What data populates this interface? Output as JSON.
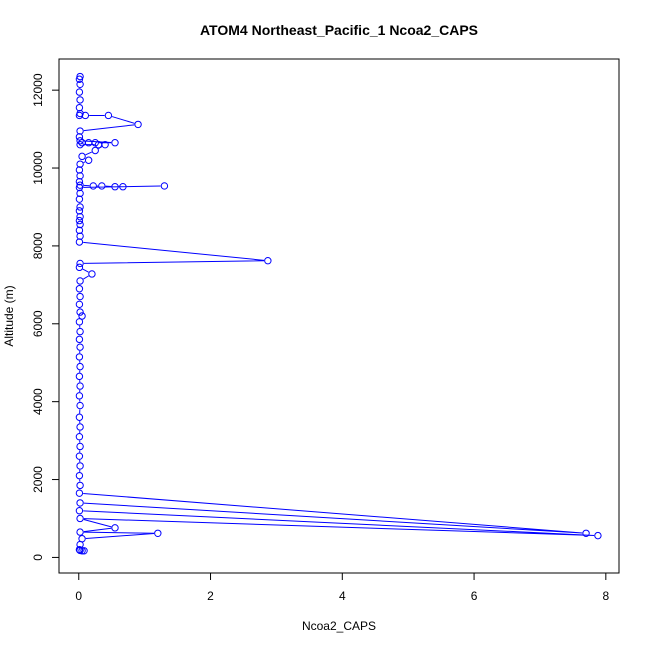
{
  "chart_data": {
    "type": "line",
    "title": "ATOM4 Northeast_Pacific_1 Ncoa2_CAPS",
    "xlabel": "Ncoa2_CAPS",
    "ylabel": "Altitude (m)",
    "xlim": [
      -0.3,
      8.2
    ],
    "ylim": [
      -400,
      12800
    ],
    "x_ticks": [
      0,
      2,
      4,
      6,
      8
    ],
    "y_ticks": [
      0,
      2000,
      4000,
      6000,
      8000,
      10000,
      12000
    ],
    "grid": false,
    "legend": "none",
    "series": [
      {
        "color": "#0000ff",
        "markers": "open-circle",
        "points": [
          {
            "x": 0.02,
            "y": 12350
          },
          {
            "x": 0.01,
            "y": 12280
          },
          {
            "x": 0.02,
            "y": 12150
          },
          {
            "x": 0.01,
            "y": 11950
          },
          {
            "x": 0.02,
            "y": 11750
          },
          {
            "x": 0.01,
            "y": 11550
          },
          {
            "x": 0.02,
            "y": 11400
          },
          {
            "x": 0.01,
            "y": 11350
          },
          {
            "x": 0.1,
            "y": 11350
          },
          {
            "x": 0.45,
            "y": 11350
          },
          {
            "x": 0.9,
            "y": 11120
          },
          {
            "x": 0.02,
            "y": 10950
          },
          {
            "x": 0.01,
            "y": 10800
          },
          {
            "x": 0.02,
            "y": 10700
          },
          {
            "x": 0.55,
            "y": 10650
          },
          {
            "x": 0.25,
            "y": 10650
          },
          {
            "x": 0.15,
            "y": 10650
          },
          {
            "x": 0.05,
            "y": 10650
          },
          {
            "x": 0.02,
            "y": 10600
          },
          {
            "x": 0.3,
            "y": 10600
          },
          {
            "x": 0.4,
            "y": 10600
          },
          {
            "x": 0.25,
            "y": 10450
          },
          {
            "x": 0.05,
            "y": 10300
          },
          {
            "x": 0.15,
            "y": 10200
          },
          {
            "x": 0.02,
            "y": 10100
          },
          {
            "x": 0.01,
            "y": 9950
          },
          {
            "x": 0.02,
            "y": 9800
          },
          {
            "x": 0.01,
            "y": 9650
          },
          {
            "x": 0.02,
            "y": 9560
          },
          {
            "x": 0.22,
            "y": 9540
          },
          {
            "x": 0.35,
            "y": 9540
          },
          {
            "x": 0.55,
            "y": 9520
          },
          {
            "x": 0.67,
            "y": 9520
          },
          {
            "x": 1.3,
            "y": 9540
          },
          {
            "x": 0.01,
            "y": 9500
          },
          {
            "x": 0.02,
            "y": 9350
          },
          {
            "x": 0.01,
            "y": 9200
          },
          {
            "x": 0.02,
            "y": 9000
          },
          {
            "x": 0.01,
            "y": 8900
          },
          {
            "x": 0.02,
            "y": 8750
          },
          {
            "x": 0.01,
            "y": 8650
          },
          {
            "x": 0.02,
            "y": 8550
          },
          {
            "x": 0.01,
            "y": 8400
          },
          {
            "x": 0.02,
            "y": 8250
          },
          {
            "x": 0.01,
            "y": 8100
          },
          {
            "x": 2.87,
            "y": 7620
          },
          {
            "x": 0.02,
            "y": 7550
          },
          {
            "x": 0.01,
            "y": 7450
          },
          {
            "x": 0.2,
            "y": 7280
          },
          {
            "x": 0.02,
            "y": 7100
          },
          {
            "x": 0.01,
            "y": 6900
          },
          {
            "x": 0.02,
            "y": 6700
          },
          {
            "x": 0.01,
            "y": 6500
          },
          {
            "x": 0.02,
            "y": 6300
          },
          {
            "x": 0.05,
            "y": 6200
          },
          {
            "x": 0.01,
            "y": 6050
          },
          {
            "x": 0.02,
            "y": 5800
          },
          {
            "x": 0.01,
            "y": 5600
          },
          {
            "x": 0.02,
            "y": 5400
          },
          {
            "x": 0.01,
            "y": 5150
          },
          {
            "x": 0.02,
            "y": 4900
          },
          {
            "x": 0.01,
            "y": 4650
          },
          {
            "x": 0.02,
            "y": 4400
          },
          {
            "x": 0.01,
            "y": 4150
          },
          {
            "x": 0.02,
            "y": 3900
          },
          {
            "x": 0.01,
            "y": 3600
          },
          {
            "x": 0.02,
            "y": 3350
          },
          {
            "x": 0.01,
            "y": 3100
          },
          {
            "x": 0.02,
            "y": 2850
          },
          {
            "x": 0.01,
            "y": 2600
          },
          {
            "x": 0.02,
            "y": 2350
          },
          {
            "x": 0.01,
            "y": 2100
          },
          {
            "x": 0.02,
            "y": 1850
          },
          {
            "x": 0.01,
            "y": 1650
          },
          {
            "x": 7.7,
            "y": 620
          },
          {
            "x": 0.02,
            "y": 1400
          },
          {
            "x": 0.01,
            "y": 1200
          },
          {
            "x": 7.88,
            "y": 560
          },
          {
            "x": 0.02,
            "y": 1000
          },
          {
            "x": 0.55,
            "y": 760
          },
          {
            "x": 0.02,
            "y": 650
          },
          {
            "x": 1.2,
            "y": 620
          },
          {
            "x": 0.05,
            "y": 480
          },
          {
            "x": 0.02,
            "y": 330
          },
          {
            "x": 0.01,
            "y": 200
          },
          {
            "x": 0.02,
            "y": 180
          },
          {
            "x": 0.05,
            "y": 170
          },
          {
            "x": 0.08,
            "y": 170
          }
        ]
      }
    ]
  }
}
